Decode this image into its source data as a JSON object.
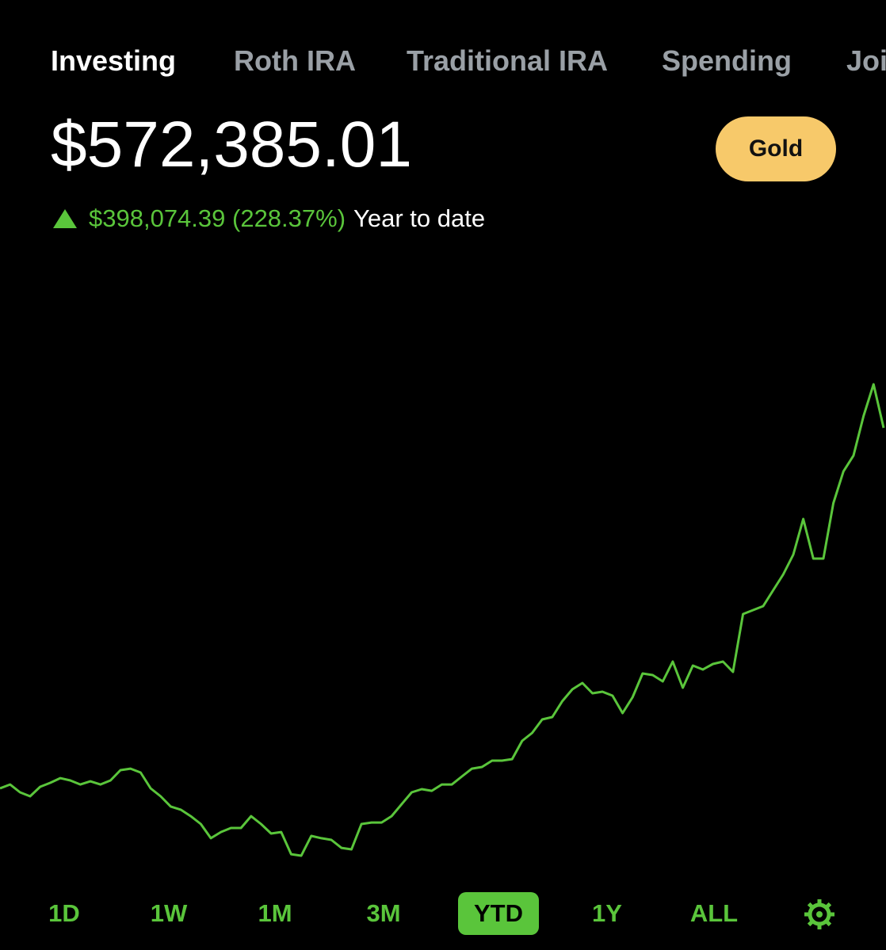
{
  "tabs": [
    {
      "label": "Investing",
      "selected": true
    },
    {
      "label": "Roth IRA",
      "selected": false
    },
    {
      "label": "Traditional IRA",
      "selected": false
    },
    {
      "label": "Spending",
      "selected": false
    },
    {
      "label": "Joi",
      "selected": false
    }
  ],
  "balance": "$572,385.01",
  "badge": "Gold",
  "change": {
    "amount": "$398,074.39 (228.37%)",
    "period": "Year to date"
  },
  "chart_data": {
    "type": "line",
    "color": "#5ac53b",
    "values": [
      174310.62,
      178600,
      169900,
      165500,
      176000,
      180400,
      185600,
      183000,
      178600,
      182100,
      178600,
      183000,
      194400,
      196100,
      191800,
      174300,
      165500,
      154200,
      150700,
      143600,
      134900,
      119200,
      126100,
      130500,
      130500,
      143600,
      134900,
      124400,
      126100,
      101600,
      99900,
      121800,
      119200,
      117400,
      108600,
      106900,
      134900,
      136600,
      136600,
      143600,
      156800,
      169900,
      173400,
      171600,
      178600,
      178600,
      187400,
      196100,
      197900,
      204900,
      204900,
      206600,
      226800,
      235500,
      250400,
      253000,
      270500,
      283600,
      290600,
      279300,
      281000,
      276600,
      257400,
      274900,
      301100,
      299400,
      292400,
      314300,
      285400,
      309900,
      305500,
      311600,
      314300,
      302900,
      366800,
      371100,
      375500,
      393000,
      410500,
      432400,
      471800,
      428000,
      428000,
      489300,
      524300,
      541800,
      585500,
      620500,
      572385.01
    ]
  },
  "ranges": [
    {
      "label": "1D",
      "selected": false
    },
    {
      "label": "1W",
      "selected": false
    },
    {
      "label": "1M",
      "selected": false
    },
    {
      "label": "3M",
      "selected": false
    },
    {
      "label": "YTD",
      "selected": true
    },
    {
      "label": "1Y",
      "selected": false
    },
    {
      "label": "ALL",
      "selected": false
    }
  ]
}
